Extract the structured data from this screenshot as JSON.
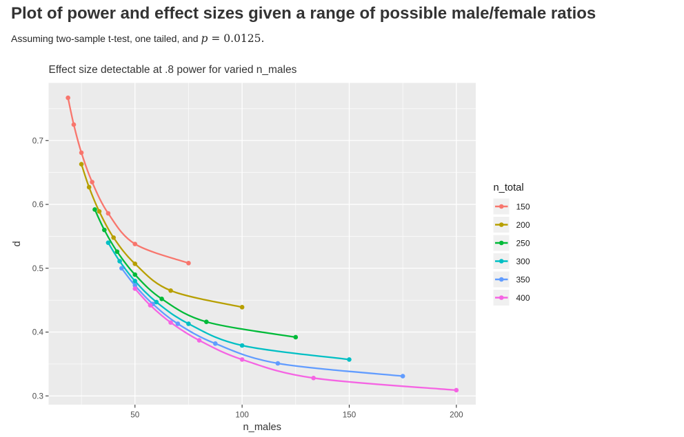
{
  "header": {
    "title": "Plot of power and effect sizes given a range of possible male/female ratios",
    "subtitle_prefix": "Assuming two-sample t-test, one tailed, and ",
    "subtitle_math_var": "p",
    "subtitle_math_rest": " = 0.0125."
  },
  "chart_data": {
    "type": "line",
    "title": "Effect size detectable at .8 power for varied n_males",
    "xlabel": "n_males",
    "ylabel": "d",
    "legend_title": "n_total",
    "legend_position": "right",
    "grid": true,
    "panel_bg": "#EBEBEB",
    "grid_color": "#FFFFFF",
    "axis_text_color": "#4D4D4D",
    "text_color": "#333333",
    "legend_label_color": "#1a1a1a",
    "legend_key_bg": "#F0F0F0",
    "xlim": [
      9.69,
      209.06
    ],
    "ylim": [
      0.2863,
      0.7903
    ],
    "x_ticks": [
      50,
      100,
      150,
      200
    ],
    "x_minor_ticks": [
      25,
      75,
      125,
      175
    ],
    "y_ticks": [
      0.3,
      0.4,
      0.5,
      0.6,
      0.7
    ],
    "y_minor_ticks": [
      0.35,
      0.45,
      0.55,
      0.65,
      0.75
    ],
    "x_tick_labels": [
      "50",
      "100",
      "150",
      "200"
    ],
    "y_tick_labels": [
      "0.3",
      "0.4",
      "0.5",
      "0.6",
      "0.7"
    ],
    "series": [
      {
        "name": "150",
        "color": "#F8766D",
        "points": [
          [
            18.75,
            0.767
          ],
          [
            21.43,
            0.725
          ],
          [
            25,
            0.681
          ],
          [
            30,
            0.635
          ],
          [
            37.5,
            0.586
          ],
          [
            50,
            0.538
          ],
          [
            75,
            0.508
          ]
        ]
      },
      {
        "name": "200",
        "color": "#B79F00",
        "points": [
          [
            25,
            0.663
          ],
          [
            28.57,
            0.627
          ],
          [
            33.33,
            0.589
          ],
          [
            40,
            0.548
          ],
          [
            50,
            0.507
          ],
          [
            66.67,
            0.465
          ],
          [
            100,
            0.439
          ]
        ]
      },
      {
        "name": "250",
        "color": "#00BA38",
        "points": [
          [
            31.25,
            0.592
          ],
          [
            35.71,
            0.56
          ],
          [
            41.67,
            0.526
          ],
          [
            50,
            0.49
          ],
          [
            62.5,
            0.452
          ],
          [
            83.33,
            0.416
          ],
          [
            125,
            0.392
          ]
        ]
      },
      {
        "name": "300",
        "color": "#00BFC4",
        "points": [
          [
            37.5,
            0.54
          ],
          [
            42.86,
            0.511
          ],
          [
            50,
            0.48
          ],
          [
            60,
            0.447
          ],
          [
            75,
            0.413
          ],
          [
            100,
            0.379
          ],
          [
            150,
            0.357
          ]
        ]
      },
      {
        "name": "350",
        "color": "#619CFF",
        "points": [
          [
            43.75,
            0.5
          ],
          [
            50,
            0.473
          ],
          [
            58.33,
            0.444
          ],
          [
            70,
            0.413
          ],
          [
            87.5,
            0.382
          ],
          [
            116.67,
            0.351
          ],
          [
            175,
            0.331
          ]
        ]
      },
      {
        "name": "400",
        "color": "#F564E3",
        "points": [
          [
            50,
            0.468
          ],
          [
            57.14,
            0.442
          ],
          [
            66.67,
            0.415
          ],
          [
            80,
            0.387
          ],
          [
            100,
            0.357
          ],
          [
            133.33,
            0.328
          ],
          [
            200,
            0.309
          ]
        ]
      }
    ]
  }
}
